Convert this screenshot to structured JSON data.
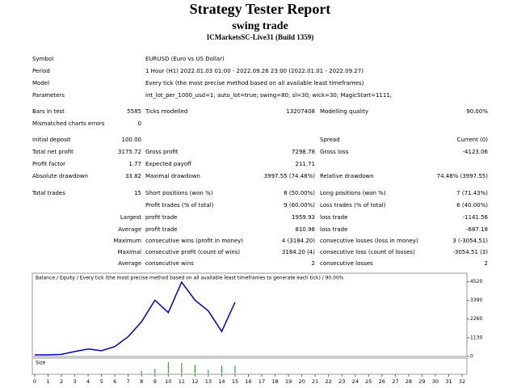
{
  "header": {
    "title": "Strategy Tester Report",
    "subtitle": "swing trade",
    "server": "ICMarketsSC-Live31 (Build 1359)"
  },
  "table": {
    "rows": [
      [
        "Symbol",
        "EURUSD (Euro vs US Dollar)"
      ],
      [
        "Period",
        "1 Hour (H1) 2022.01.03 01:00 - 2022.09.26 23:00 (2022.01.01 - 2022.09.27)"
      ],
      [
        "Model",
        "Every tick (the most precise method based on all available least timeframes)"
      ],
      [
        "Parameters",
        "int_lot_per_1000_usd=1; auto_lot=true; swing=80; sl=30; wick=30; MagicStart=1111;"
      ],
      [
        "Bars in test",
        "5585",
        "Ticks modelled",
        "13207408",
        "Modelling quality",
        "90.00%"
      ],
      [
        "Mismatched charts errors",
        "0",
        null,
        null,
        null,
        null
      ],
      [
        "Initial deposit",
        "100.00",
        null,
        null,
        "Spread",
        "Current (0)"
      ],
      [
        "Total net profit",
        "3175.72",
        "Gross profit",
        "7298.78",
        "Gross loss",
        "-4123.06"
      ],
      [
        "Profit factor",
        "1.77",
        "Expected payoff",
        "211.71",
        null,
        null
      ],
      [
        "Absolute drawdown",
        "33.82",
        "Maximal drawdown",
        "3997.55 (74.48%)",
        "Relative drawdown",
        "74.48% (3997.55)"
      ],
      [
        "Total trades",
        "15",
        "Short positions (won %)",
        "8 (50.00%)",
        "Long positions (won %)",
        "7 (71.43%)"
      ],
      [
        null,
        null,
        "Profit trades (% of total)",
        "9 (60.00%)",
        "Loss trades (% of total)",
        "6 (40.00%)"
      ],
      [
        null,
        "Largest",
        "profit trade",
        "1959.93",
        "loss trade",
        "-1141.56"
      ],
      [
        null,
        "Average",
        "profit trade",
        "810.98",
        "loss trade",
        "-687.18"
      ],
      [
        null,
        "Maximum",
        "consecutive wins (profit in money)",
        "4 (3184.20)",
        "consecutive losses (loss in money)",
        "3 (-3054.51)"
      ],
      [
        null,
        "Maximal",
        "consecutive profit (count of wins)",
        "3184.20 (4)",
        "consecutive loss (count of losses)",
        "-3054.51 (3)"
      ],
      [
        null,
        "Average",
        "consecutive wins",
        "2",
        "consecutive losses",
        "2"
      ]
    ]
  },
  "chart_data": {
    "type": "line",
    "legend": [
      {
        "name": "Balance",
        "color": "#0000cc"
      },
      {
        "name": "Equity",
        "color": "#00a000"
      }
    ],
    "legend_separator": "/",
    "legend_note": "/ Every tick (the most precise method based on all available least timeframes to generate each tick) / 90.00%",
    "x": [
      0,
      1,
      2,
      3,
      4,
      5,
      6,
      7,
      8,
      9,
      10,
      11,
      12,
      13,
      14,
      15
    ],
    "series": [
      {
        "name": "Balance",
        "color": "#0000cc",
        "values": [
          100,
          100,
          130,
          300,
          450,
          350,
          600,
          1200,
          2100,
          3400,
          2650,
          4490,
          3400,
          2750,
          1510,
          3275.72
        ]
      }
    ],
    "size_label": "Size",
    "size": {
      "color": "#00a000",
      "values": [
        null,
        null,
        null,
        null,
        null,
        null,
        null,
        null,
        0.3,
        0.5,
        1.3,
        1.2,
        1.0,
        0.4,
        0.9,
        0.9
      ]
    },
    "xlim": [
      0,
      32
    ],
    "xticks": [
      0,
      1,
      2,
      3,
      4,
      5,
      6,
      7,
      8,
      9,
      10,
      11,
      12,
      13,
      14,
      15,
      16,
      17,
      18,
      19,
      20,
      21,
      22,
      23,
      24,
      25,
      26,
      27,
      28,
      29,
      30,
      31,
      32
    ],
    "ylim": [
      0,
      4980
    ],
    "yticks": [
      0,
      1130,
      2260,
      3390,
      4520
    ]
  }
}
